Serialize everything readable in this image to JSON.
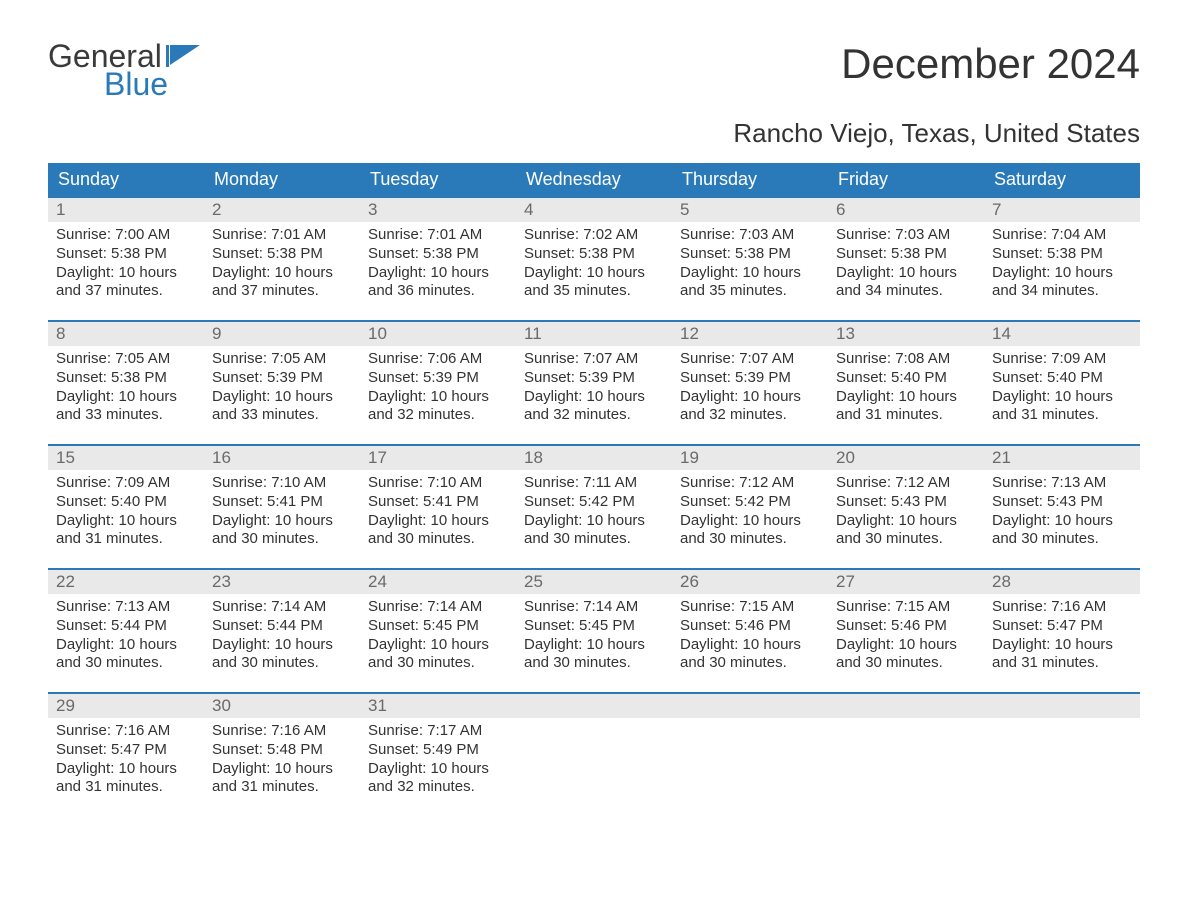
{
  "logo": {
    "text1": "General",
    "text2": "Blue"
  },
  "title": "December 2024",
  "location": "Rancho Viejo, Texas, United States",
  "colors": {
    "header_bg": "#2a7ab9",
    "header_fg": "#ffffff",
    "daynum_bg": "#e9e9e9",
    "daynum_fg": "#6a6a6a",
    "text": "#333333",
    "page_bg": "#ffffff",
    "week_border": "#2a7ab9"
  },
  "typography": {
    "title_fontsize": 42,
    "location_fontsize": 26,
    "dow_fontsize": 18,
    "daynum_fontsize": 17,
    "body_fontsize": 15,
    "logo_fontsize": 32
  },
  "dow": [
    "Sunday",
    "Monday",
    "Tuesday",
    "Wednesday",
    "Thursday",
    "Friday",
    "Saturday"
  ],
  "labels": {
    "sunrise": "Sunrise:",
    "sunset": "Sunset:",
    "daylight": "Daylight:"
  },
  "weeks": [
    [
      {
        "n": "1",
        "sr": "7:00 AM",
        "ss": "5:38 PM",
        "dl": "10 hours and 37 minutes."
      },
      {
        "n": "2",
        "sr": "7:01 AM",
        "ss": "5:38 PM",
        "dl": "10 hours and 37 minutes."
      },
      {
        "n": "3",
        "sr": "7:01 AM",
        "ss": "5:38 PM",
        "dl": "10 hours and 36 minutes."
      },
      {
        "n": "4",
        "sr": "7:02 AM",
        "ss": "5:38 PM",
        "dl": "10 hours and 35 minutes."
      },
      {
        "n": "5",
        "sr": "7:03 AM",
        "ss": "5:38 PM",
        "dl": "10 hours and 35 minutes."
      },
      {
        "n": "6",
        "sr": "7:03 AM",
        "ss": "5:38 PM",
        "dl": "10 hours and 34 minutes."
      },
      {
        "n": "7",
        "sr": "7:04 AM",
        "ss": "5:38 PM",
        "dl": "10 hours and 34 minutes."
      }
    ],
    [
      {
        "n": "8",
        "sr": "7:05 AM",
        "ss": "5:38 PM",
        "dl": "10 hours and 33 minutes."
      },
      {
        "n": "9",
        "sr": "7:05 AM",
        "ss": "5:39 PM",
        "dl": "10 hours and 33 minutes."
      },
      {
        "n": "10",
        "sr": "7:06 AM",
        "ss": "5:39 PM",
        "dl": "10 hours and 32 minutes."
      },
      {
        "n": "11",
        "sr": "7:07 AM",
        "ss": "5:39 PM",
        "dl": "10 hours and 32 minutes."
      },
      {
        "n": "12",
        "sr": "7:07 AM",
        "ss": "5:39 PM",
        "dl": "10 hours and 32 minutes."
      },
      {
        "n": "13",
        "sr": "7:08 AM",
        "ss": "5:40 PM",
        "dl": "10 hours and 31 minutes."
      },
      {
        "n": "14",
        "sr": "7:09 AM",
        "ss": "5:40 PM",
        "dl": "10 hours and 31 minutes."
      }
    ],
    [
      {
        "n": "15",
        "sr": "7:09 AM",
        "ss": "5:40 PM",
        "dl": "10 hours and 31 minutes."
      },
      {
        "n": "16",
        "sr": "7:10 AM",
        "ss": "5:41 PM",
        "dl": "10 hours and 30 minutes."
      },
      {
        "n": "17",
        "sr": "7:10 AM",
        "ss": "5:41 PM",
        "dl": "10 hours and 30 minutes."
      },
      {
        "n": "18",
        "sr": "7:11 AM",
        "ss": "5:42 PM",
        "dl": "10 hours and 30 minutes."
      },
      {
        "n": "19",
        "sr": "7:12 AM",
        "ss": "5:42 PM",
        "dl": "10 hours and 30 minutes."
      },
      {
        "n": "20",
        "sr": "7:12 AM",
        "ss": "5:43 PM",
        "dl": "10 hours and 30 minutes."
      },
      {
        "n": "21",
        "sr": "7:13 AM",
        "ss": "5:43 PM",
        "dl": "10 hours and 30 minutes."
      }
    ],
    [
      {
        "n": "22",
        "sr": "7:13 AM",
        "ss": "5:44 PM",
        "dl": "10 hours and 30 minutes."
      },
      {
        "n": "23",
        "sr": "7:14 AM",
        "ss": "5:44 PM",
        "dl": "10 hours and 30 minutes."
      },
      {
        "n": "24",
        "sr": "7:14 AM",
        "ss": "5:45 PM",
        "dl": "10 hours and 30 minutes."
      },
      {
        "n": "25",
        "sr": "7:14 AM",
        "ss": "5:45 PM",
        "dl": "10 hours and 30 minutes."
      },
      {
        "n": "26",
        "sr": "7:15 AM",
        "ss": "5:46 PM",
        "dl": "10 hours and 30 minutes."
      },
      {
        "n": "27",
        "sr": "7:15 AM",
        "ss": "5:46 PM",
        "dl": "10 hours and 30 minutes."
      },
      {
        "n": "28",
        "sr": "7:16 AM",
        "ss": "5:47 PM",
        "dl": "10 hours and 31 minutes."
      }
    ],
    [
      {
        "n": "29",
        "sr": "7:16 AM",
        "ss": "5:47 PM",
        "dl": "10 hours and 31 minutes."
      },
      {
        "n": "30",
        "sr": "7:16 AM",
        "ss": "5:48 PM",
        "dl": "10 hours and 31 minutes."
      },
      {
        "n": "31",
        "sr": "7:17 AM",
        "ss": "5:49 PM",
        "dl": "10 hours and 32 minutes."
      },
      null,
      null,
      null,
      null
    ]
  ]
}
